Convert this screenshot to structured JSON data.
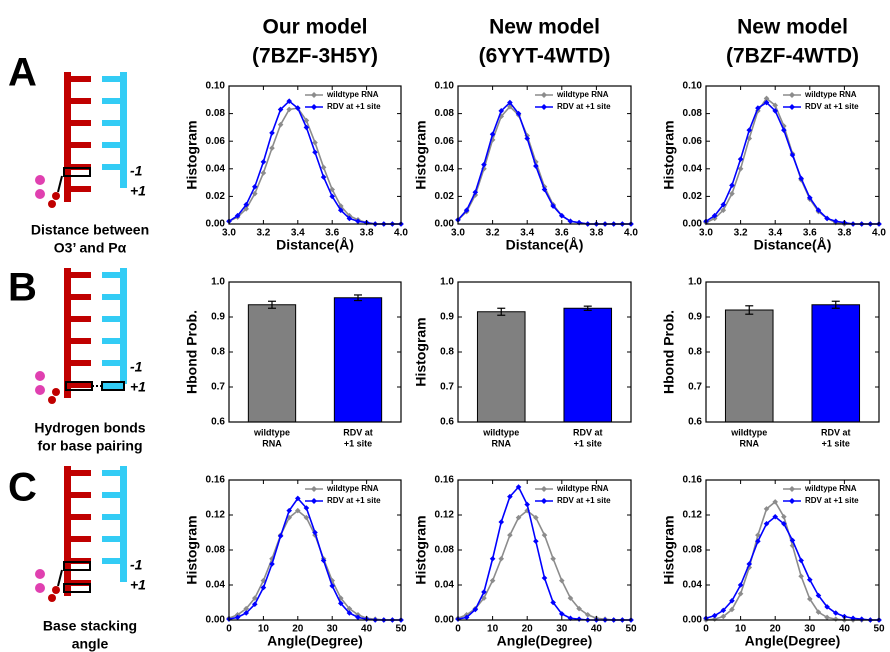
{
  "figure": {
    "column_titles": [
      [
        "Our model",
        "(7BZF-3H5Y)"
      ],
      [
        "New model",
        "(6YYT-4WTD)"
      ],
      [
        "New model",
        "(7BZF-4WTD)"
      ]
    ],
    "panel_letters": [
      "A",
      "B",
      "C"
    ],
    "captions": [
      [
        "Distance between",
        "O3’ and Pα"
      ],
      [
        "Hydrogen bonds",
        "for base pairing"
      ],
      [
        "Base stacking",
        "angle"
      ]
    ],
    "site_labels": [
      "-1",
      "+1"
    ]
  },
  "chart_data": [
    {
      "type": "line",
      "xlabel": "Distance(Å)",
      "ylabel": "Histogram",
      "legend": "upper right",
      "x": [
        3.0,
        3.05,
        3.1,
        3.15,
        3.2,
        3.25,
        3.3,
        3.35,
        3.4,
        3.45,
        3.5,
        3.55,
        3.6,
        3.65,
        3.7,
        3.75,
        3.8,
        3.85,
        3.9,
        3.95,
        4.0
      ],
      "series": [
        {
          "name": "wildtype RNA",
          "color": "#8c8c8c",
          "values": [
            0.002,
            0.005,
            0.011,
            0.022,
            0.037,
            0.055,
            0.072,
            0.083,
            0.084,
            0.075,
            0.059,
            0.041,
            0.025,
            0.013,
            0.006,
            0.003,
            0.001,
            0,
            0,
            0,
            0
          ]
        },
        {
          "name": "RDV at +1 site",
          "color": "#0000ff",
          "values": [
            0.002,
            0.006,
            0.014,
            0.027,
            0.045,
            0.066,
            0.083,
            0.089,
            0.084,
            0.07,
            0.052,
            0.034,
            0.02,
            0.01,
            0.004,
            0.002,
            0.001,
            0,
            0,
            0,
            0
          ]
        }
      ],
      "xlim": [
        3.0,
        4.0
      ],
      "xticks": [
        {
          "value": 3,
          "label": "3.0"
        },
        3.2,
        3.4,
        3.6,
        3.8,
        {
          "value": 4,
          "label": "4.0"
        }
      ],
      "ylim": [
        0,
        0.1
      ],
      "yticks": [
        {
          "value": 0,
          "label": "0.00"
        },
        {
          "value": 0.02,
          "label": "0.02"
        },
        {
          "value": 0.04,
          "label": "0.04"
        },
        {
          "value": 0.06,
          "label": "0.06"
        },
        {
          "value": 0.08,
          "label": "0.08"
        },
        {
          "value": 0.1,
          "label": "0.10"
        }
      ]
    },
    {
      "type": "line",
      "xlabel": "Distance(Å)",
      "ylabel": "Histogram",
      "legend": "upper right",
      "x": [
        3.0,
        3.05,
        3.1,
        3.15,
        3.2,
        3.25,
        3.3,
        3.35,
        3.4,
        3.45,
        3.5,
        3.55,
        3.6,
        3.65,
        3.7,
        3.75,
        3.8,
        3.85,
        3.9,
        3.95,
        4.0
      ],
      "series": [
        {
          "name": "wildtype RNA",
          "color": "#8c8c8c",
          "values": [
            0.003,
            0.009,
            0.021,
            0.04,
            0.061,
            0.078,
            0.085,
            0.079,
            0.064,
            0.045,
            0.027,
            0.014,
            0.006,
            0.002,
            0.001,
            0,
            0,
            0,
            0,
            0,
            0
          ]
        },
        {
          "name": "RDV at +1 site",
          "color": "#0000ff",
          "values": [
            0.003,
            0.01,
            0.023,
            0.043,
            0.065,
            0.082,
            0.088,
            0.08,
            0.062,
            0.042,
            0.025,
            0.013,
            0.006,
            0.002,
            0.001,
            0,
            0,
            0,
            0,
            0,
            0
          ]
        }
      ],
      "xlim": [
        3.0,
        4.0
      ],
      "xticks": [
        {
          "value": 3,
          "label": "3.0"
        },
        3.2,
        3.4,
        3.6,
        3.8,
        {
          "value": 4,
          "label": "4.0"
        }
      ],
      "ylim": [
        0,
        0.1
      ],
      "yticks": [
        {
          "value": 0,
          "label": "0.00"
        },
        {
          "value": 0.02,
          "label": "0.02"
        },
        {
          "value": 0.04,
          "label": "0.04"
        },
        {
          "value": 0.06,
          "label": "0.06"
        },
        {
          "value": 0.08,
          "label": "0.08"
        },
        {
          "value": 0.1,
          "label": "0.10"
        }
      ]
    },
    {
      "type": "line",
      "xlabel": "Distance(Å)",
      "ylabel": "Histogram",
      "legend": "upper right",
      "x": [
        3.0,
        3.05,
        3.1,
        3.15,
        3.2,
        3.25,
        3.3,
        3.35,
        3.4,
        3.45,
        3.5,
        3.55,
        3.6,
        3.65,
        3.7,
        3.75,
        3.8,
        3.85,
        3.9,
        3.95,
        4.0
      ],
      "series": [
        {
          "name": "wildtype RNA",
          "color": "#8c8c8c",
          "values": [
            0.001,
            0.004,
            0.01,
            0.022,
            0.04,
            0.062,
            0.082,
            0.091,
            0.086,
            0.071,
            0.051,
            0.032,
            0.018,
            0.009,
            0.004,
            0.001,
            0,
            0,
            0,
            0,
            0
          ]
        },
        {
          "name": "RDV at +1 site",
          "color": "#0000ff",
          "values": [
            0.002,
            0.006,
            0.014,
            0.028,
            0.047,
            0.068,
            0.084,
            0.088,
            0.082,
            0.068,
            0.05,
            0.033,
            0.019,
            0.01,
            0.004,
            0.002,
            0.001,
            0,
            0,
            0,
            0
          ]
        }
      ],
      "xlim": [
        3.0,
        4.0
      ],
      "xticks": [
        {
          "value": 3,
          "label": "3.0"
        },
        3.2,
        3.4,
        3.6,
        3.8,
        {
          "value": 4,
          "label": "4.0"
        }
      ],
      "ylim": [
        0,
        0.1
      ],
      "yticks": [
        {
          "value": 0,
          "label": "0.00"
        },
        {
          "value": 0.02,
          "label": "0.02"
        },
        {
          "value": 0.04,
          "label": "0.04"
        },
        {
          "value": 0.06,
          "label": "0.06"
        },
        {
          "value": 0.08,
          "label": "0.08"
        },
        {
          "value": 0.1,
          "label": "0.10"
        }
      ]
    },
    {
      "type": "bar",
      "ylabel": "Hbond Prob.",
      "categories": [
        [
          "wildtype",
          "RNA"
        ],
        [
          "RDV at",
          "+1 site"
        ]
      ],
      "values": [
        0.935,
        0.955
      ],
      "errors": [
        0.01,
        0.008
      ],
      "colors": [
        "#808080",
        "#0000ff"
      ],
      "ylim": [
        0.6,
        1.0
      ],
      "yticks": [
        0.6,
        0.7,
        0.8,
        0.9,
        {
          "value": 1,
          "label": "1.0"
        }
      ]
    },
    {
      "type": "bar",
      "ylabel": "Histogram",
      "categories": [
        [
          "wildtype",
          "RNA"
        ],
        [
          "RDV at",
          "+1 site"
        ]
      ],
      "values": [
        0.915,
        0.925
      ],
      "errors": [
        0.01,
        0.006
      ],
      "colors": [
        "#808080",
        "#0000ff"
      ],
      "ylim": [
        0.6,
        1.0
      ],
      "yticks": [
        0.6,
        0.7,
        0.8,
        0.9,
        {
          "value": 1,
          "label": "1.0"
        }
      ]
    },
    {
      "type": "bar",
      "ylabel": "Hbond Prob.",
      "categories": [
        [
          "wildtype",
          "RNA"
        ],
        [
          "RDV at",
          "+1 site"
        ]
      ],
      "values": [
        0.92,
        0.935
      ],
      "errors": [
        0.012,
        0.01
      ],
      "colors": [
        "#808080",
        "#0000ff"
      ],
      "ylim": [
        0.6,
        1.0
      ],
      "yticks": [
        0.6,
        0.7,
        0.8,
        0.9,
        {
          "value": 1,
          "label": "1.0"
        }
      ]
    },
    {
      "type": "line",
      "xlabel": "Angle(Degree)",
      "ylabel": "Histogram",
      "legend": "upper right",
      "x": [
        0,
        2.5,
        5,
        7.5,
        10,
        12.5,
        15,
        17.5,
        20,
        22.5,
        25,
        27.5,
        30,
        32.5,
        35,
        37.5,
        40,
        42.5,
        45,
        47.5,
        50
      ],
      "series": [
        {
          "name": "wildtype RNA",
          "color": "#8c8c8c",
          "values": [
            0.002,
            0.006,
            0.013,
            0.025,
            0.045,
            0.07,
            0.097,
            0.117,
            0.125,
            0.117,
            0.097,
            0.07,
            0.045,
            0.025,
            0.013,
            0.006,
            0.002,
            0.001,
            0,
            0,
            0
          ]
        },
        {
          "name": "RDV at +1 site",
          "color": "#0000ff",
          "values": [
            0.001,
            0.003,
            0.008,
            0.018,
            0.037,
            0.064,
            0.096,
            0.125,
            0.139,
            0.128,
            0.1,
            0.068,
            0.039,
            0.019,
            0.008,
            0.003,
            0.001,
            0,
            0,
            0,
            0
          ]
        }
      ],
      "xlim": [
        0,
        50
      ],
      "xticks": [
        0,
        10,
        20,
        30,
        40,
        50
      ],
      "ylim": [
        0,
        0.16
      ],
      "yticks": [
        {
          "value": 0,
          "label": "0.00"
        },
        {
          "value": 0.04,
          "label": "0.04"
        },
        {
          "value": 0.08,
          "label": "0.08"
        },
        {
          "value": 0.12,
          "label": "0.12"
        },
        {
          "value": 0.16,
          "label": "0.16"
        }
      ]
    },
    {
      "type": "line",
      "xlabel": "Angle(Degree)",
      "ylabel": "Histogram",
      "legend": "upper right",
      "x": [
        0,
        2.5,
        5,
        7.5,
        10,
        12.5,
        15,
        17.5,
        20,
        22.5,
        25,
        27.5,
        30,
        32.5,
        35,
        37.5,
        40,
        42.5,
        45,
        47.5,
        50
      ],
      "series": [
        {
          "name": "wildtype RNA",
          "color": "#8c8c8c",
          "values": [
            0.002,
            0.006,
            0.013,
            0.025,
            0.045,
            0.07,
            0.097,
            0.117,
            0.125,
            0.117,
            0.097,
            0.07,
            0.045,
            0.025,
            0.013,
            0.006,
            0.002,
            0.001,
            0,
            0,
            0
          ]
        },
        {
          "name": "RDV at +1 site",
          "color": "#0000ff",
          "values": [
            0.001,
            0.003,
            0.012,
            0.032,
            0.07,
            0.112,
            0.141,
            0.152,
            0.132,
            0.09,
            0.048,
            0.02,
            0.007,
            0.002,
            0.001,
            0,
            0,
            0,
            0,
            0,
            0
          ]
        }
      ],
      "xlim": [
        0,
        50
      ],
      "xticks": [
        0,
        10,
        20,
        30,
        40,
        50
      ],
      "ylim": [
        0,
        0.16
      ],
      "yticks": [
        {
          "value": 0,
          "label": "0.00"
        },
        {
          "value": 0.04,
          "label": "0.04"
        },
        {
          "value": 0.08,
          "label": "0.08"
        },
        {
          "value": 0.12,
          "label": "0.12"
        },
        {
          "value": 0.16,
          "label": "0.16"
        }
      ]
    },
    {
      "type": "line",
      "xlabel": "Angle(Degree)",
      "ylabel": "Histogram",
      "legend": "upper right",
      "x": [
        0,
        2.5,
        5,
        7.5,
        10,
        12.5,
        15,
        17.5,
        20,
        22.5,
        25,
        27.5,
        30,
        32.5,
        35,
        37.5,
        40,
        42.5,
        45,
        47.5,
        50
      ],
      "series": [
        {
          "name": "wildtype RNA",
          "color": "#8c8c8c",
          "values": [
            0,
            0.001,
            0.004,
            0.012,
            0.03,
            0.06,
            0.097,
            0.127,
            0.135,
            0.118,
            0.085,
            0.05,
            0.024,
            0.009,
            0.003,
            0.001,
            0,
            0,
            0,
            0,
            0
          ]
        },
        {
          "name": "RDV at +1 site",
          "color": "#0000ff",
          "values": [
            0.002,
            0.005,
            0.011,
            0.022,
            0.04,
            0.064,
            0.09,
            0.11,
            0.118,
            0.11,
            0.091,
            0.068,
            0.046,
            0.028,
            0.015,
            0.008,
            0.004,
            0.002,
            0.001,
            0,
            0
          ]
        }
      ],
      "xlim": [
        0,
        50
      ],
      "xticks": [
        0,
        10,
        20,
        30,
        40,
        50
      ],
      "ylim": [
        0,
        0.16
      ],
      "yticks": [
        {
          "value": 0,
          "label": "0.00"
        },
        {
          "value": 0.04,
          "label": "0.04"
        },
        {
          "value": 0.08,
          "label": "0.08"
        },
        {
          "value": 0.12,
          "label": "0.12"
        },
        {
          "value": 0.16,
          "label": "0.16"
        }
      ]
    }
  ]
}
